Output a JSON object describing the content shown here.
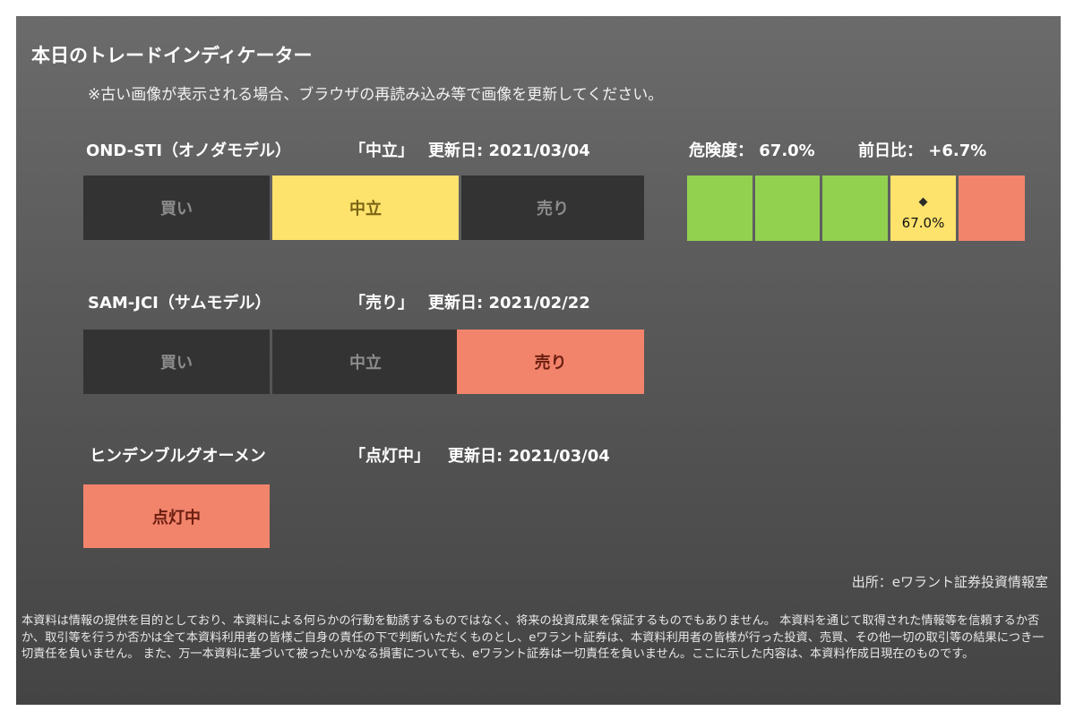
{
  "title": "本日のトレードインディケーター",
  "note": "※古い画像が表示される場合、ブラウザの再読み込み等で画像を更新してください。",
  "indicators": [
    {
      "name": "OND-STI（オノダモデル）",
      "status": "「中立」",
      "updated_label": "更新日: 2021/03/04",
      "segments": [
        {
          "label": "買い",
          "state": "inactive"
        },
        {
          "label": "中立",
          "state": "active-yellow"
        },
        {
          "label": "売り",
          "state": "inactive"
        }
      ]
    },
    {
      "name": "SAM-JCI（サムモデル）",
      "status": "「売り」",
      "updated_label": "更新日: 2021/02/22",
      "segments": [
        {
          "label": "買い",
          "state": "inactive"
        },
        {
          "label": "中立",
          "state": "inactive"
        },
        {
          "label": "売り",
          "state": "active-red"
        }
      ]
    },
    {
      "name": "ヒンデンブルグオーメン",
      "status": "「点灯中」",
      "updated_label": "更新日: 2021/03/04",
      "segments": [
        {
          "label": "点灯中",
          "state": "active-red"
        }
      ]
    }
  ],
  "risk": {
    "risk_label": "危険度： 67.0%",
    "change_label": "前日比： +6.7%",
    "value_percent": 67.0,
    "gauge_value_text": "67.0%",
    "marker_glyph": "◆",
    "cells": [
      "green",
      "green",
      "green",
      "yellow",
      "red"
    ]
  },
  "source": "出所：eワラント証券投資情報室",
  "disclaimer": "本資料は情報の提供を目的としており、本資料による何らかの行動を勧誘するものではなく、将来の投資成果を保証するものでもありません。 本資料を通じて取得された情報等を信頼するか否か、取引等を行うか否かは全て本資料利用者の皆様ご自身の責任の下で判断いただくものとし、eワラント証券は、本資料利用者の皆様が行った投資、売買、その他一切の取引等の結果につき一切責任を負いません。 また、万一本資料に基づいて被ったいかなる損害についても、eワラント証券は一切責任を負いません。ここに示した内容は、本資料作成日現在のものです。",
  "colors": {
    "inactive": "#333333",
    "neutral_active": "#fde26c",
    "sell_active": "#f2846c",
    "gauge_low": "#92d050"
  }
}
